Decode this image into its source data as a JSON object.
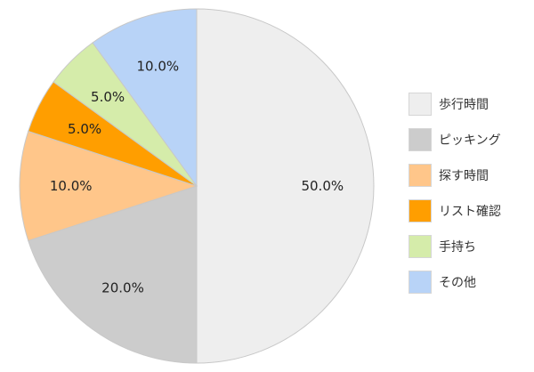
{
  "chart_data": {
    "type": "pie",
    "title": "",
    "categories": [
      "歩行時間",
      "ピッキング",
      "探す時間",
      "リスト確認",
      "手持ち",
      "その他"
    ],
    "values": [
      50.0,
      20.0,
      10.0,
      5.0,
      5.0,
      10.0
    ],
    "labels": [
      "50.0%",
      "20.0%",
      "10.0%",
      "5.0%",
      "5.0%",
      "10.0%"
    ],
    "colors": [
      "#eeeeee",
      "#cccccc",
      "#ffc68a",
      "#ff9e00",
      "#d5ecaa",
      "#b8d3f7"
    ],
    "start": "top",
    "direction": "clockwise",
    "legend": "right"
  }
}
